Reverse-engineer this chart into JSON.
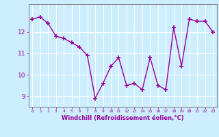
{
  "x": [
    0,
    1,
    2,
    3,
    4,
    5,
    6,
    7,
    8,
    9,
    10,
    11,
    12,
    13,
    14,
    15,
    16,
    17,
    18,
    19,
    20,
    21,
    22,
    23
  ],
  "y": [
    12.6,
    12.7,
    12.4,
    11.8,
    11.7,
    11.5,
    11.3,
    10.9,
    8.9,
    9.6,
    10.4,
    10.8,
    9.5,
    9.6,
    9.3,
    10.8,
    9.5,
    9.3,
    12.2,
    10.4,
    12.6,
    12.5,
    12.5,
    12.0
  ],
  "line_color": "#990099",
  "marker": "+",
  "marker_color": "#990099",
  "bg_color": "#cceeff",
  "grid_color": "#ffffff",
  "xlabel": "Windchill (Refroidissement éolien,°C)",
  "ylim": [
    8.5,
    13.3
  ],
  "xlim": [
    -0.5,
    23.5
  ],
  "yticks": [
    9,
    10,
    11,
    12
  ],
  "xticks": [
    0,
    1,
    2,
    3,
    4,
    5,
    6,
    7,
    8,
    9,
    10,
    11,
    12,
    13,
    14,
    15,
    16,
    17,
    18,
    19,
    20,
    21,
    22,
    23
  ],
  "axis_color": "#888888",
  "tick_color": "#990099",
  "xlabel_color": "#990099",
  "linewidth": 1.0,
  "markersize": 4,
  "markeredgewidth": 1.2
}
